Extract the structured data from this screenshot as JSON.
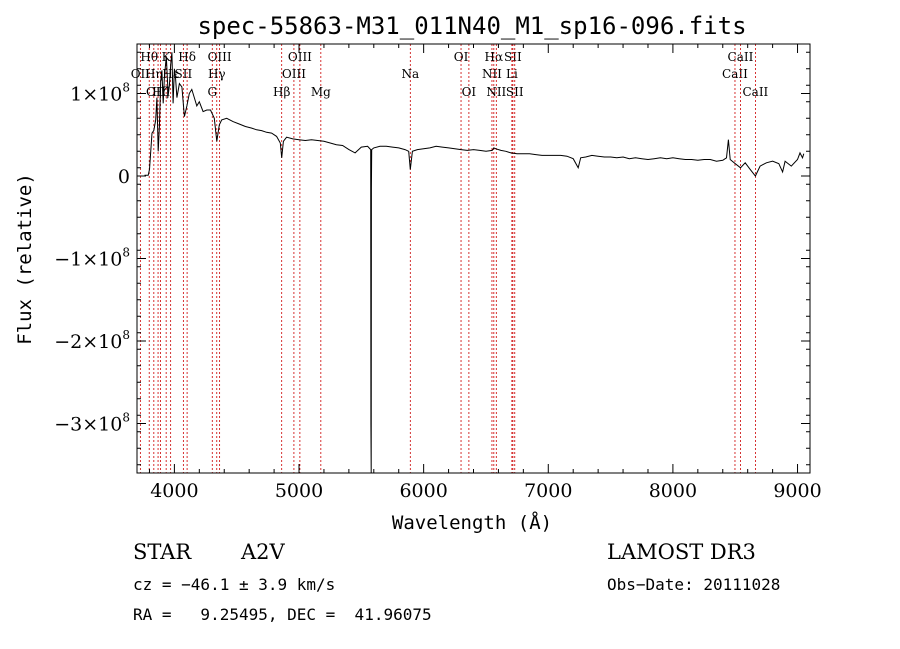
{
  "chart_data": {
    "type": "line",
    "title": "spec-55863-M31_011N40_M1_sp16-096.fits",
    "xlabel": "Wavelength (Å)",
    "ylabel": "Flux (relative)",
    "xlim": [
      3700,
      9100
    ],
    "ylim": [
      -360000000,
      160000000
    ],
    "x_ticks": [
      {
        "value": 4000,
        "label": "4000"
      },
      {
        "value": 5000,
        "label": "5000"
      },
      {
        "value": 6000,
        "label": "6000"
      },
      {
        "value": 7000,
        "label": "7000"
      },
      {
        "value": 8000,
        "label": "8000"
      },
      {
        "value": 9000,
        "label": "9000"
      }
    ],
    "y_ticks": [
      {
        "value": 100000000,
        "mantissa": "1",
        "exp": "8"
      },
      {
        "value": 0,
        "mantissa": "0",
        "exp": ""
      },
      {
        "value": -100000000,
        "mantissa": "−1",
        "exp": "8"
      },
      {
        "value": -200000000,
        "mantissa": "−2",
        "exp": "8"
      },
      {
        "value": -300000000,
        "mantissa": "−3",
        "exp": "8"
      }
    ],
    "series": [
      {
        "name": "flux",
        "x": [
          3760,
          3790,
          3800,
          3820,
          3835,
          3850,
          3860,
          3870,
          3880,
          3890,
          3900,
          3910,
          3920,
          3935,
          3950,
          3960,
          3970,
          3980,
          3990,
          4000,
          4010,
          4020,
          4040,
          4060,
          4080,
          4100,
          4120,
          4140,
          4160,
          4180,
          4200,
          4230,
          4260,
          4290,
          4320,
          4340,
          4360,
          4380,
          4420,
          4470,
          4520,
          4570,
          4620,
          4660,
          4700,
          4740,
          4780,
          4820,
          4850,
          4861,
          4875,
          4900,
          4950,
          5000,
          5050,
          5100,
          5150,
          5200,
          5250,
          5300,
          5350,
          5400,
          5450,
          5500,
          5550,
          5575,
          5577,
          5579,
          5581,
          5583,
          5600,
          5650,
          5700,
          5750,
          5800,
          5850,
          5880,
          5893,
          5910,
          5950,
          6000,
          6050,
          6100,
          6150,
          6200,
          6250,
          6300,
          6350,
          6400,
          6450,
          6500,
          6550,
          6563,
          6580,
          6620,
          6660,
          6700,
          6750,
          6800,
          6850,
          6900,
          6950,
          7000,
          7050,
          7100,
          7150,
          7200,
          7240,
          7260,
          7300,
          7350,
          7400,
          7450,
          7500,
          7550,
          7600,
          7650,
          7700,
          7750,
          7800,
          7850,
          7900,
          7950,
          8000,
          8050,
          8100,
          8150,
          8200,
          8250,
          8300,
          8350,
          8400,
          8430,
          8445,
          8460,
          8500,
          8542,
          8580,
          8620,
          8662,
          8700,
          8750,
          8800,
          8850,
          8880,
          8900,
          8950,
          9000,
          9020,
          9040,
          9050
        ],
        "y": [
          1000000,
          1000000,
          8000000,
          52000000,
          55000000,
          68000000,
          95000000,
          30000000,
          60000000,
          115000000,
          128000000,
          88000000,
          120000000,
          145000000,
          98000000,
          110000000,
          135000000,
          150000000,
          88000000,
          130000000,
          118000000,
          95000000,
          112000000,
          108000000,
          72000000,
          85000000,
          100000000,
          105000000,
          95000000,
          85000000,
          90000000,
          78000000,
          80000000,
          80000000,
          70000000,
          42000000,
          62000000,
          68000000,
          70000000,
          66000000,
          63000000,
          60000000,
          58000000,
          56000000,
          55000000,
          53000000,
          52000000,
          48000000,
          40000000,
          22000000,
          42000000,
          47000000,
          45000000,
          44000000,
          43000000,
          44000000,
          43000000,
          42000000,
          40000000,
          38000000,
          37000000,
          32000000,
          28000000,
          35000000,
          36000000,
          32000000,
          -300000000,
          -360000000,
          -15000000,
          32000000,
          34000000,
          36000000,
          36000000,
          35000000,
          34000000,
          32000000,
          30000000,
          8000000,
          30000000,
          32000000,
          33000000,
          34000000,
          36000000,
          35000000,
          34000000,
          33000000,
          32000000,
          31000000,
          32000000,
          31000000,
          30000000,
          31000000,
          34000000,
          33000000,
          31000000,
          30000000,
          28000000,
          27000000,
          27000000,
          27000000,
          26000000,
          25000000,
          25000000,
          25000000,
          25000000,
          24000000,
          21000000,
          10000000,
          22000000,
          23000000,
          25000000,
          24000000,
          23000000,
          23000000,
          22000000,
          23000000,
          21000000,
          22000000,
          21000000,
          20000000,
          21000000,
          22000000,
          21000000,
          22000000,
          21000000,
          20000000,
          20000000,
          19000000,
          20000000,
          20000000,
          18000000,
          19000000,
          22000000,
          44000000,
          20000000,
          15000000,
          10000000,
          16000000,
          8000000,
          0,
          12000000,
          16000000,
          18000000,
          15000000,
          5000000,
          18000000,
          12000000,
          20000000,
          28000000,
          22000000,
          27000000
        ]
      }
    ],
    "line_markers": [
      {
        "name": "H-theta",
        "label": "Hθ",
        "wavelength": 3798,
        "row": 1
      },
      {
        "name": "OII",
        "label": "OII",
        "wavelength": 3727,
        "row": 2
      },
      {
        "name": "OIII-3869",
        "label": "OIII",
        "wavelength": 3869,
        "row": 3
      },
      {
        "name": "H-eta",
        "label": "Hη",
        "wavelength": 3835,
        "row": 2
      },
      {
        "name": "H-zeta",
        "label": "Hζ",
        "wavelength": 3889,
        "row": 3
      },
      {
        "name": "K",
        "label": "K",
        "wavelength": 3934,
        "row": 1
      },
      {
        "name": "H-epsilon",
        "label": "Hε",
        "wavelength": 3970,
        "row": 2
      },
      {
        "name": "SII-4072",
        "label": "SII",
        "wavelength": 4072,
        "row": 2
      },
      {
        "name": "H-delta",
        "label": "Hδ",
        "wavelength": 4102,
        "row": 1
      },
      {
        "name": "G",
        "label": "G",
        "wavelength": 4304,
        "row": 3
      },
      {
        "name": "OIII-4363",
        "label": "OIII",
        "wavelength": 4363,
        "row": 1
      },
      {
        "name": "H-gamma",
        "label": "Hγ",
        "wavelength": 4340,
        "row": 2
      },
      {
        "name": "H-beta",
        "label": "Hβ",
        "wavelength": 4861,
        "row": 3
      },
      {
        "name": "OIII-4959",
        "label": "OIII",
        "wavelength": 4959,
        "row": 2
      },
      {
        "name": "OIII-5007",
        "label": "OIII",
        "wavelength": 5007,
        "row": 1
      },
      {
        "name": "Mg",
        "label": "Mg",
        "wavelength": 5175,
        "row": 3
      },
      {
        "name": "Na",
        "label": "Na",
        "wavelength": 5893,
        "row": 2
      },
      {
        "name": "OI-6300",
        "label": "OI",
        "wavelength": 6300,
        "row": 1
      },
      {
        "name": "OI-6363",
        "label": "OI",
        "wavelength": 6363,
        "row": 3
      },
      {
        "name": "NII-6548",
        "label": "NII",
        "wavelength": 6548,
        "row": 2
      },
      {
        "name": "H-alpha",
        "label": "Hα",
        "wavelength": 6563,
        "row": 1
      },
      {
        "name": "NII-6583",
        "label": "NII",
        "wavelength": 6583,
        "row": 3
      },
      {
        "name": "SII-6716",
        "label": "SII",
        "wavelength": 6716,
        "row": 1
      },
      {
        "name": "Li",
        "label": "Li",
        "wavelength": 6708,
        "row": 2
      },
      {
        "name": "SII-6731",
        "label": "SII",
        "wavelength": 6731,
        "row": 3
      },
      {
        "name": "CaII-8498",
        "label": "CaII",
        "wavelength": 8498,
        "row": 2
      },
      {
        "name": "CaII-8542",
        "label": "CaII",
        "wavelength": 8542,
        "row": 1
      },
      {
        "name": "CaII-8662",
        "label": "CaII",
        "wavelength": 8662,
        "row": 3
      }
    ],
    "annotations": {
      "class": "STAR",
      "subclass": "A2V",
      "survey": "LAMOST DR3",
      "cz": "cz = −46.1 ± 3.9 km/s",
      "obs_date": "Obs−Date: 20111028",
      "coords": "RA =   9.25495, DEC =  41.96075"
    },
    "colors": {
      "spectrum": "#000000",
      "marker": "#cc0000",
      "axes": "#000000"
    }
  }
}
